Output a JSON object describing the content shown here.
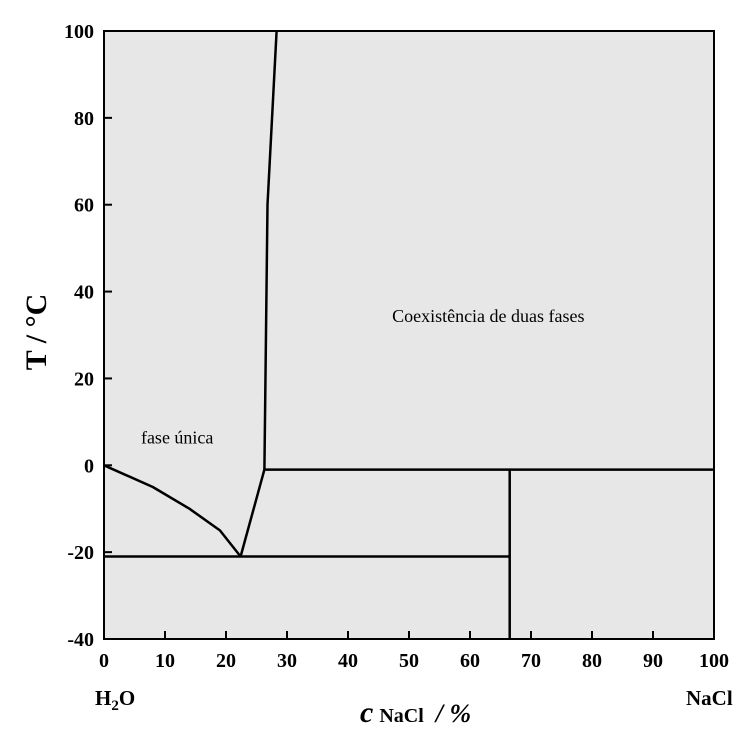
{
  "chart_data": {
    "type": "line",
    "ylabel": "T / °C",
    "xlabel": {
      "symbol": "c",
      "subscript": "NaCl",
      "unit": "/ %"
    },
    "xlim": [
      0,
      100
    ],
    "ylim": [
      -40,
      100
    ],
    "x_ticks": [
      0,
      10,
      20,
      30,
      40,
      50,
      60,
      70,
      80,
      90,
      100
    ],
    "y_ticks": [
      -40,
      -20,
      0,
      20,
      40,
      60,
      80,
      100
    ],
    "end_labels": {
      "left": "H₂O",
      "right": "NaCl"
    },
    "background_color": "#e7e7e7",
    "line_color": "#000000",
    "grid": false,
    "boundaries": [
      {
        "name": "liquidus-ice",
        "points": [
          [
            0,
            0
          ],
          [
            8,
            -5
          ],
          [
            14,
            -10
          ],
          [
            19,
            -15
          ],
          [
            22.4,
            -21
          ]
        ]
      },
      {
        "name": "liquidus-salt-lower",
        "points": [
          [
            22.4,
            -21
          ],
          [
            26.3,
            -1
          ]
        ]
      },
      {
        "name": "solubility-curve",
        "points": [
          [
            26.3,
            -1
          ],
          [
            26.8,
            60
          ],
          [
            28.3,
            100
          ]
        ]
      },
      {
        "name": "eutectic-line",
        "points": [
          [
            0,
            -21
          ],
          [
            66.5,
            -21
          ]
        ]
      },
      {
        "name": "peritectic-line",
        "points": [
          [
            26.3,
            -1
          ],
          [
            100,
            -1
          ]
        ]
      },
      {
        "name": "hydrate-composition",
        "points": [
          [
            66.5,
            -40
          ],
          [
            66.5,
            -1
          ]
        ]
      }
    ],
    "annotations": [
      {
        "text": "Coexistência de duas fases",
        "x": 63,
        "y": 33
      },
      {
        "text": "fase única",
        "x": 12,
        "y": 5
      }
    ]
  }
}
